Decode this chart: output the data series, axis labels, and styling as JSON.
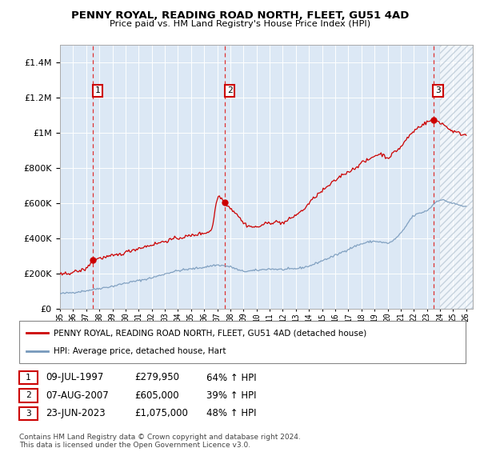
{
  "title": "PENNY ROYAL, READING ROAD NORTH, FLEET, GU51 4AD",
  "subtitle": "Price paid vs. HM Land Registry's House Price Index (HPI)",
  "xlim": [
    1995.0,
    2026.5
  ],
  "ylim": [
    0,
    1500000
  ],
  "yticks": [
    0,
    200000,
    400000,
    600000,
    800000,
    1000000,
    1200000,
    1400000
  ],
  "ytick_labels": [
    "£0",
    "£200K",
    "£400K",
    "£600K",
    "£800K",
    "£1M",
    "£1.2M",
    "£1.4M"
  ],
  "xtick_years": [
    1995,
    1996,
    1997,
    1998,
    1999,
    2000,
    2001,
    2002,
    2003,
    2004,
    2005,
    2006,
    2007,
    2008,
    2009,
    2010,
    2011,
    2012,
    2013,
    2014,
    2015,
    2016,
    2017,
    2018,
    2019,
    2020,
    2021,
    2022,
    2023,
    2024,
    2025,
    2026
  ],
  "sales": [
    {
      "date_num": 1997.52,
      "price": 279950,
      "label": "1"
    },
    {
      "date_num": 2007.6,
      "price": 605000,
      "label": "2"
    },
    {
      "date_num": 2023.48,
      "price": 1075000,
      "label": "3"
    }
  ],
  "future_start": 2024.0,
  "legend_red": "PENNY ROYAL, READING ROAD NORTH, FLEET, GU51 4AD (detached house)",
  "legend_blue": "HPI: Average price, detached house, Hart",
  "table_rows": [
    {
      "num": "1",
      "date": "09-JUL-1997",
      "price": "£279,950",
      "hpi": "64% ↑ HPI"
    },
    {
      "num": "2",
      "date": "07-AUG-2007",
      "price": "£605,000",
      "hpi": "39% ↑ HPI"
    },
    {
      "num": "3",
      "date": "23-JUN-2023",
      "price": "£1,075,000",
      "hpi": "48% ↑ HPI"
    }
  ],
  "footer": "Contains HM Land Registry data © Crown copyright and database right 2024.\nThis data is licensed under the Open Government Licence v3.0.",
  "red_color": "#cc0000",
  "blue_color": "#7799bb",
  "bg_plot": "#dce8f5",
  "grid_color": "#ffffff",
  "vline_color": "#dd3333"
}
